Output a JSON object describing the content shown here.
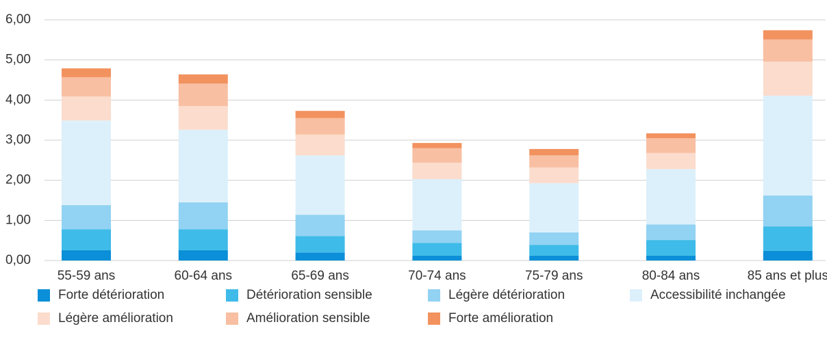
{
  "chart_data": {
    "type": "stacked_bar",
    "categories": [
      "55-59 ans",
      "60-64 ans",
      "65-69 ans",
      "70-74 ans",
      "75-79 ans",
      "80-84 ans",
      "85 ans et plus"
    ],
    "series": [
      {
        "name": "Forte détérioration",
        "color": "#0a8fd8",
        "values": [
          0.26,
          0.26,
          0.2,
          0.12,
          0.12,
          0.12,
          0.24
        ]
      },
      {
        "name": "Détérioration sensible",
        "color": "#3ebbe8",
        "values": [
          0.52,
          0.52,
          0.41,
          0.32,
          0.27,
          0.39,
          0.61
        ]
      },
      {
        "name": "Légère détérioration",
        "color": "#92d2f2",
        "values": [
          0.6,
          0.67,
          0.53,
          0.31,
          0.31,
          0.39,
          0.77
        ]
      },
      {
        "name": "Accessibilité inchangée",
        "color": "#dcf0fb",
        "values": [
          2.11,
          1.81,
          1.48,
          1.28,
          1.23,
          1.38,
          2.49
        ]
      },
      {
        "name": "Légère amélioration",
        "color": "#fbdccd",
        "values": [
          0.6,
          0.59,
          0.52,
          0.41,
          0.39,
          0.4,
          0.85
        ]
      },
      {
        "name": "Amélioration sensible",
        "color": "#f8bfa2",
        "values": [
          0.48,
          0.56,
          0.41,
          0.36,
          0.3,
          0.37,
          0.55
        ]
      },
      {
        "name": "Forte amélioration",
        "color": "#f2925f",
        "values": [
          0.22,
          0.23,
          0.18,
          0.13,
          0.16,
          0.12,
          0.23
        ]
      }
    ],
    "ylim": [
      0,
      6
    ],
    "yticks": [
      {
        "value": 0,
        "label": "0,00"
      },
      {
        "value": 1,
        "label": "1,00"
      },
      {
        "value": 2,
        "label": "2,00"
      },
      {
        "value": 3,
        "label": "3,00"
      },
      {
        "value": 4,
        "label": "4,00"
      },
      {
        "value": 5,
        "label": "5,00"
      },
      {
        "value": 6,
        "label": "6,00"
      }
    ],
    "grid": true
  }
}
